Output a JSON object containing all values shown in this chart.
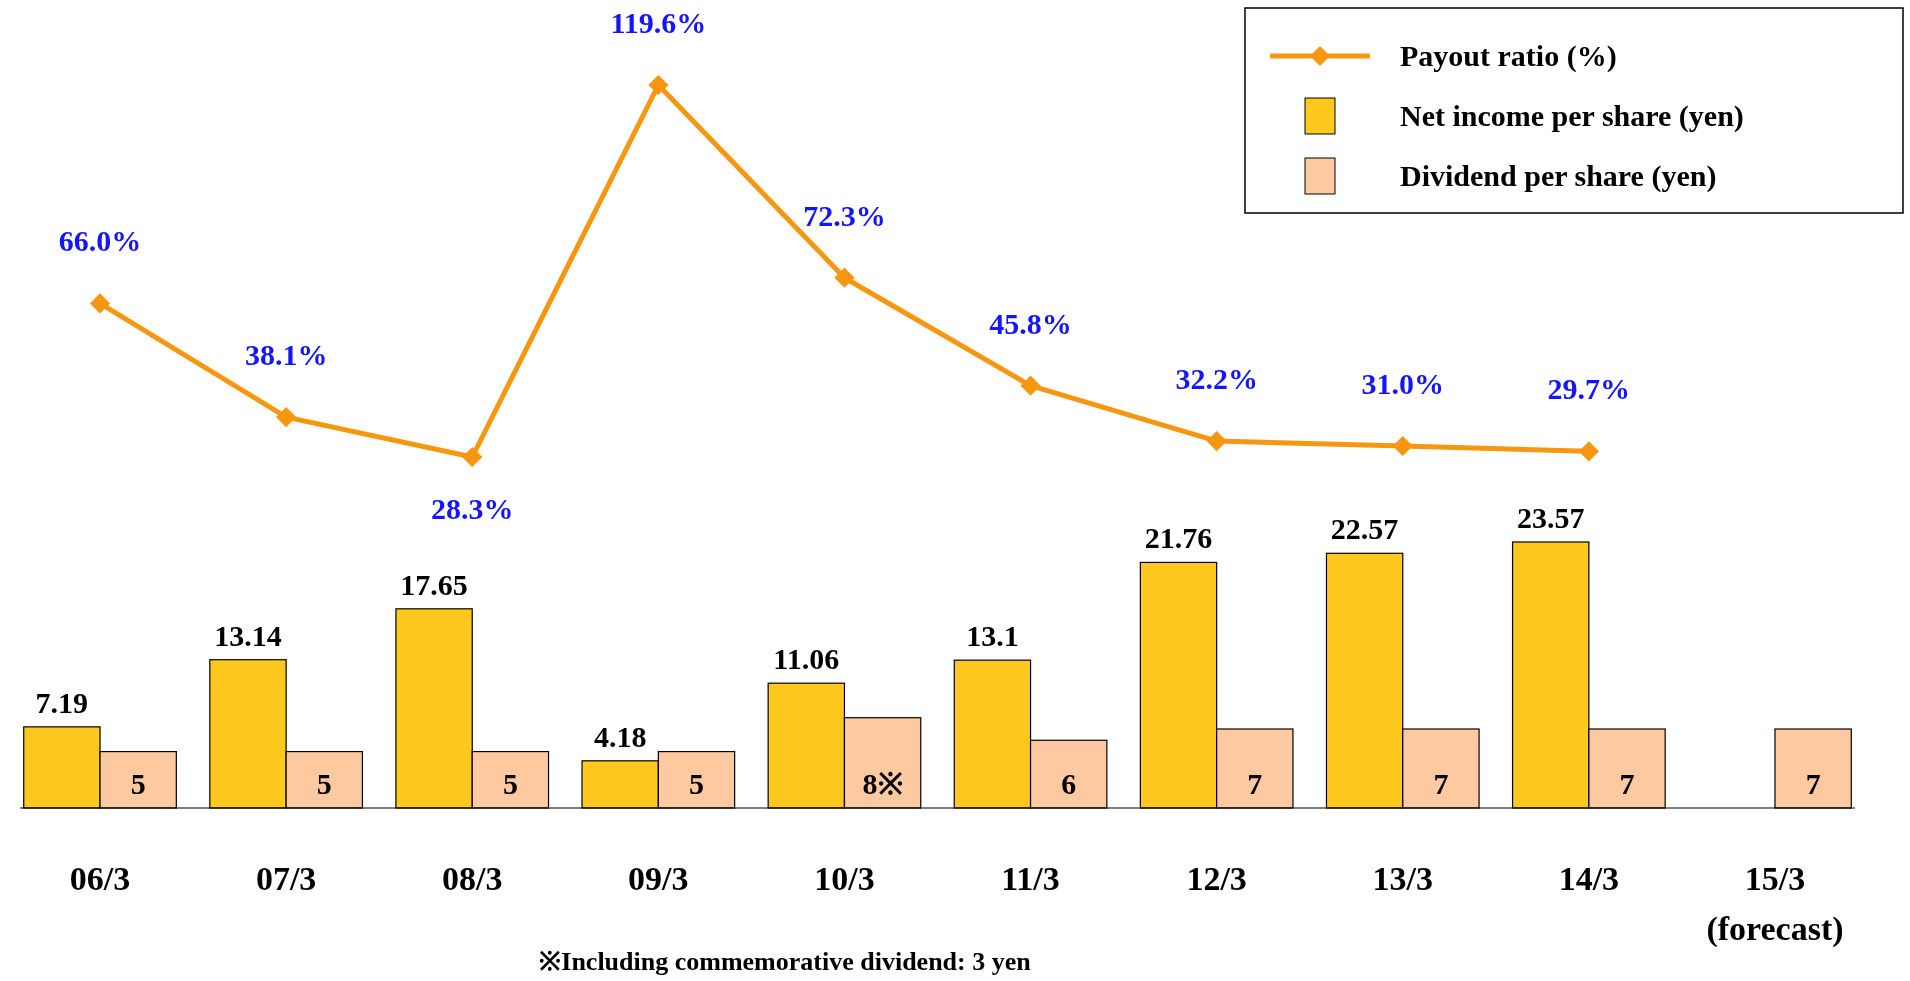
{
  "chart_data": [
    {
      "type": "line",
      "categories": [
        null,
        null,
        null,
        null,
        null,
        null,
        null,
        null,
        null,
        null
      ],
      "marker": "diamond",
      "legend": "top right",
      "data_labels": true,
      "series": [
        {
          "name": "Payout ratio (%)",
          "color": "#f7960f",
          "values": [
            66.0,
            38.1,
            28.3,
            119.6,
            72.3,
            45.8,
            32.2,
            31.0,
            29.7,
            null
          ],
          "value_labels": [
            "66.0%",
            "38.1%",
            "28.3%",
            "119.6%",
            "72.3%",
            "45.8%",
            "32.2%",
            "31.0%",
            "29.7%",
            null
          ]
        }
      ]
    },
    {
      "type": "bar",
      "categories": [
        "06/3",
        "07/3",
        "08/3",
        "09/3",
        "10/3",
        "11/3",
        "12/3",
        "13/3",
        "14/3",
        "15/3\n(forecast)"
      ],
      "legend": "top right",
      "data_labels": true,
      "series": [
        {
          "name": "Net income per share (yen)",
          "color": "#ffc81e",
          "values": [
            7.19,
            13.14,
            17.65,
            4.18,
            11.06,
            13.1,
            21.76,
            22.57,
            23.57,
            null
          ],
          "value_labels": [
            "7.19",
            "13.14",
            "17.65",
            "4.18",
            "11.06",
            "13.1",
            "21.76",
            "22.57",
            "23.57",
            null
          ]
        },
        {
          "name": "Dividend per share (yen)",
          "color": "#fcc9a0",
          "values": [
            5,
            5,
            5,
            5,
            8,
            6,
            7,
            7,
            7,
            7
          ],
          "value_labels": [
            "5",
            "5",
            "5",
            "5",
            "8※",
            "6",
            "7",
            "7",
            "7",
            "7"
          ]
        }
      ],
      "annotations": [
        "※Including commemorative dividend: 3 yen"
      ]
    }
  ]
}
